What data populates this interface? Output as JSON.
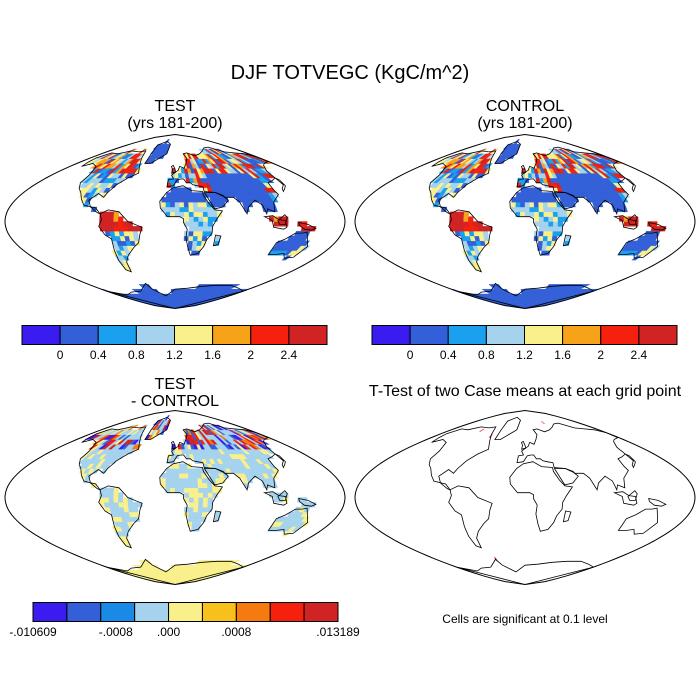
{
  "figure": {
    "title": "DJF TOTVEGC (KgC/m^2)",
    "note": "Cells are significant at 0.1 level"
  },
  "panels": [
    {
      "id": "test",
      "title_line1": "TEST",
      "title_line2": "(yrs 181-200)"
    },
    {
      "id": "control",
      "title_line1": "CONTROL",
      "title_line2": "(yrs 181-200)"
    },
    {
      "id": "diff",
      "title_line1": "TEST",
      "title_line2": "- CONTROL"
    },
    {
      "id": "ttest",
      "title_line1": "T-Test of two Case means at each grid point",
      "title_line2": ""
    }
  ],
  "colorbars": {
    "absolute": {
      "colors": [
        "#3a1cf0",
        "#3360d8",
        "#1aa0ee",
        "#a5d3ed",
        "#f9f08c",
        "#f7a31a",
        "#f5200d",
        "#d12323"
      ],
      "labels": [
        "0",
        "0.4",
        "0.8",
        "1.2",
        "1.6",
        "2",
        "2.4"
      ]
    },
    "difference": {
      "colors": [
        "#3a1cf0",
        "#3360d8",
        "#1a8ae6",
        "#a5d3ed",
        "#f9f08c",
        "#f7c01a",
        "#f57a10",
        "#f5200d",
        "#d12323"
      ],
      "labels": [
        "-.010609",
        "-.0008",
        ".000",
        ".0008",
        ".013189"
      ]
    }
  }
}
